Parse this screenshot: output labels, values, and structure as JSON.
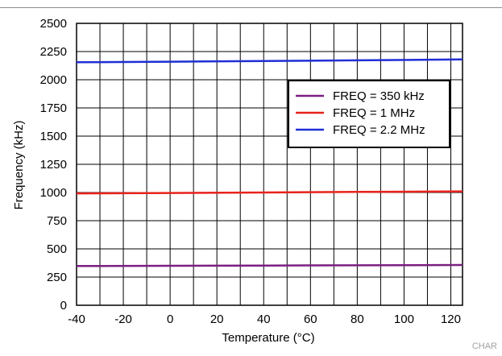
{
  "chart_data": {
    "type": "line",
    "xlabel": "Temperature (°C)",
    "ylabel": "Frequency (kHz)",
    "xlim": [
      -40,
      125
    ],
    "ylim": [
      0,
      2500
    ],
    "x_ticks": [
      -40,
      -20,
      0,
      20,
      40,
      60,
      80,
      100,
      120
    ],
    "y_ticks": [
      0,
      250,
      500,
      750,
      1000,
      1250,
      1500,
      1750,
      2000,
      2250,
      2500
    ],
    "x_gridlines_every": 10,
    "grid": true,
    "legend_position": "upper-right",
    "series": [
      {
        "name": "FREQ = 350 kHz",
        "color": "#7b1f82",
        "x": [
          -40,
          0,
          40,
          80,
          125
        ],
        "y": [
          348,
          350,
          352,
          354,
          357
        ]
      },
      {
        "name": "FREQ = 1 MHz",
        "color": "#e8221c",
        "x": [
          -40,
          0,
          40,
          80,
          125
        ],
        "y": [
          992,
          996,
          1000,
          1005,
          1010
        ]
      },
      {
        "name": "FREQ = 2.2 MHz",
        "color": "#1f2fd4",
        "x": [
          -40,
          0,
          40,
          80,
          125
        ],
        "y": [
          2155,
          2160,
          2166,
          2172,
          2180
        ]
      }
    ],
    "corner_note": "CHAR"
  }
}
